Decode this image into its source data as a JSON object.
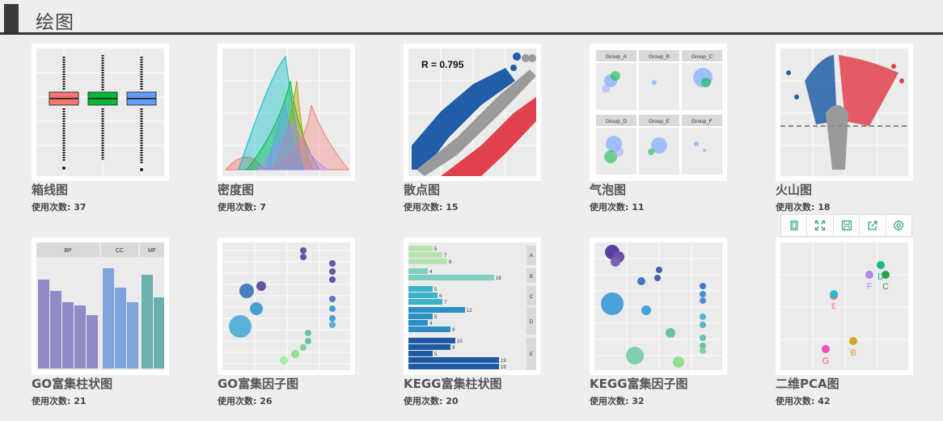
{
  "section": {
    "title": "绘图"
  },
  "charts": [
    {
      "title": "箱线图",
      "usage": "使用次数: 37"
    },
    {
      "title": "密度图",
      "usage": "使用次数: 7"
    },
    {
      "title": "散点图",
      "usage": "使用次数: 15",
      "thumb_text": "R = 0.795"
    },
    {
      "title": "气泡图",
      "usage": "使用次数: 11",
      "panels": [
        "Group_A",
        "Group_B",
        "Group_C",
        "Group_D",
        "Group_E",
        "Group_F"
      ]
    },
    {
      "title": "火山图",
      "usage": "使用次数: 18"
    },
    {
      "title": "GO富集柱状图",
      "usage": "使用次数: 21",
      "panels": [
        "BP",
        "CC",
        "MF"
      ]
    },
    {
      "title": "GO富集因子图",
      "usage": "使用次数: 26"
    },
    {
      "title": "KEGG富集柱状图",
      "usage": "使用次数: 20",
      "bar_labels": [
        "5",
        "7",
        "8",
        "4",
        "18",
        "5",
        "6",
        "7",
        "12",
        "5",
        "4",
        "9",
        "10",
        "9",
        "5",
        "19",
        "19"
      ],
      "facets": [
        "A",
        "B",
        "C",
        "D",
        "E"
      ]
    },
    {
      "title": "KEGG富集因子图",
      "usage": "使用次数: 32"
    },
    {
      "title": "二维PCA图",
      "usage": "使用次数: 42",
      "point_labels": [
        "F",
        "D",
        "C",
        "E",
        "B",
        "G"
      ]
    }
  ],
  "toolbar": {
    "icons": [
      "copy-icon",
      "fullscreen-icon",
      "save-icon",
      "share-icon",
      "settings-icon"
    ],
    "accent": "#3aa776"
  }
}
